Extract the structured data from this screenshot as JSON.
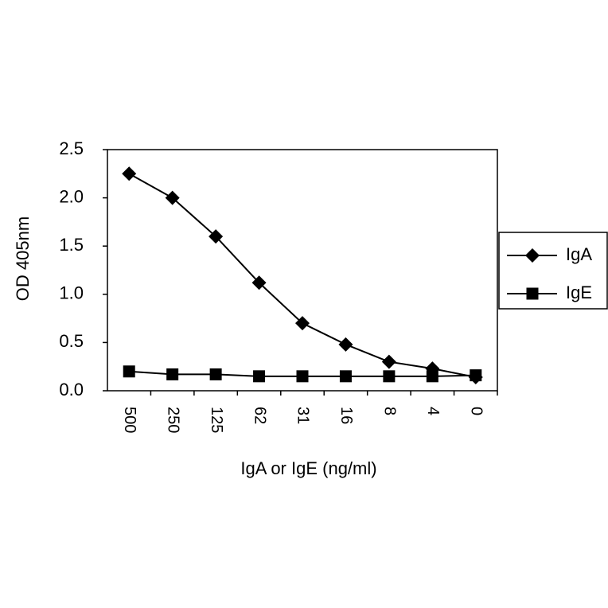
{
  "chart_data": {
    "type": "line",
    "x_label": "IgA or IgE (ng/ml)",
    "y_label": "OD 405nm",
    "categories": [
      "500",
      "250",
      "125",
      "62",
      "31",
      "16",
      "8",
      "4",
      "0"
    ],
    "series": [
      {
        "name": "IgA",
        "color": "#000000",
        "marker": "diamond",
        "values": [
          2.25,
          2.0,
          1.6,
          1.12,
          0.7,
          0.48,
          0.3,
          0.23,
          0.14
        ]
      },
      {
        "name": "IgE",
        "color": "#000000",
        "marker": "square",
        "values": [
          0.2,
          0.17,
          0.17,
          0.15,
          0.15,
          0.15,
          0.15,
          0.15,
          0.16
        ]
      }
    ],
    "ylim": [
      0,
      2.5
    ],
    "yticks": [
      {
        "value": 0,
        "label": "0.0"
      },
      0.5,
      {
        "value": 1,
        "label": "1.0"
      },
      1.5,
      {
        "value": 2,
        "label": "2.0"
      },
      2.5
    ],
    "grid": false,
    "legend": "right"
  }
}
